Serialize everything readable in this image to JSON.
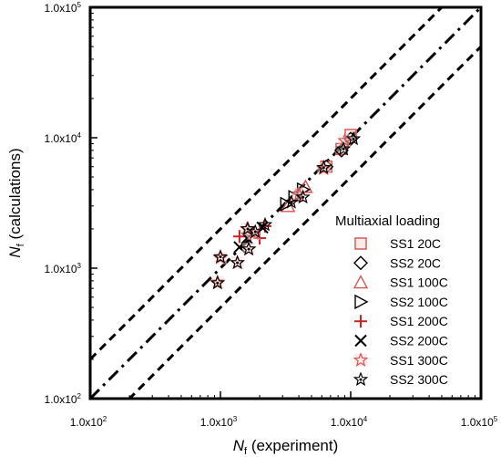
{
  "chart_data": {
    "type": "scatter",
    "x_scale": "log",
    "y_scale": "log",
    "xlim": [
      100,
      100000
    ],
    "ylim": [
      100,
      100000
    ],
    "x_ticks": [
      100,
      1000,
      10000,
      100000
    ],
    "y_ticks": [
      100,
      1000,
      10000,
      100000
    ],
    "x_tick_labels": [
      {
        "mantissa": "1.0x10",
        "exp": "2"
      },
      {
        "mantissa": "1.0x10",
        "exp": "3"
      },
      {
        "mantissa": "1.0x10",
        "exp": "4"
      },
      {
        "mantissa": "1.0x10",
        "exp": "5"
      }
    ],
    "y_tick_labels": [
      {
        "mantissa": "1.0x10",
        "exp": "2"
      },
      {
        "mantissa": "1.0x10",
        "exp": "3"
      },
      {
        "mantissa": "1.0x10",
        "exp": "4"
      },
      {
        "mantissa": "1.0x10",
        "exp": "5"
      }
    ],
    "xlabel": {
      "symbol": "N",
      "sub": "f",
      "text": " (experiment)"
    },
    "ylabel": {
      "symbol": "N",
      "sub": "f",
      "text": " (calculations)"
    },
    "legend_title": "Multiaxial loading",
    "legend_position": "bottom-right",
    "grid": false,
    "reference_lines": [
      {
        "style": "dashdot",
        "factor": 1
      },
      {
        "style": "dashed",
        "factor": 2
      },
      {
        "style": "dashed",
        "factor": 0.5
      }
    ],
    "series": [
      {
        "name": "SS1 20C",
        "marker": "square",
        "color": "#d9534f",
        "points": [
          [
            6500,
            6000
          ],
          [
            10000,
            10500
          ],
          [
            8500,
            8200
          ]
        ]
      },
      {
        "name": "SS2 20C",
        "marker": "diamond",
        "color": "#000000",
        "points": [
          [
            6500,
            6000
          ],
          [
            10000,
            9800
          ],
          [
            8500,
            8000
          ]
        ]
      },
      {
        "name": "SS1 100C",
        "marker": "triangle-up",
        "color": "#d9534f",
        "points": [
          [
            4500,
            4200
          ],
          [
            3800,
            3600
          ],
          [
            3300,
            3000
          ]
        ]
      },
      {
        "name": "SS2 100C",
        "marker": "triangle-right",
        "color": "#000000",
        "points": [
          [
            4300,
            4000
          ],
          [
            3700,
            3500
          ],
          [
            3200,
            3100
          ]
        ]
      },
      {
        "name": "SS1 200C",
        "marker": "plus",
        "color": "#cc2222",
        "points": [
          [
            1400,
            1750
          ],
          [
            2000,
            1700
          ],
          [
            2200,
            2100
          ],
          [
            1700,
            1800
          ]
        ]
      },
      {
        "name": "SS2 200C",
        "marker": "x",
        "color": "#000000",
        "points": [
          [
            1400,
            1450
          ],
          [
            2100,
            2050
          ],
          [
            1600,
            1700
          ]
        ]
      },
      {
        "name": "SS1 300C",
        "marker": "star",
        "color": "#d9534f",
        "points": [
          [
            950,
            780
          ],
          [
            1000,
            1200
          ],
          [
            1350,
            1100
          ],
          [
            1650,
            1400
          ],
          [
            1600,
            2000
          ],
          [
            1800,
            1850
          ],
          [
            4000,
            3700
          ],
          [
            6200,
            5800
          ],
          [
            9000,
            9500
          ]
        ]
      },
      {
        "name": "SS2 300C",
        "marker": "star-inner",
        "color": "#000000",
        "points": [
          [
            950,
            770
          ],
          [
            1000,
            1220
          ],
          [
            1350,
            1100
          ],
          [
            1650,
            1400
          ],
          [
            1620,
            2000
          ],
          [
            1850,
            1900
          ],
          [
            2200,
            2150
          ],
          [
            4300,
            3500
          ],
          [
            6200,
            5900
          ],
          [
            8800,
            8200
          ],
          [
            10500,
            9800
          ],
          [
            3500,
            3200
          ]
        ]
      }
    ]
  }
}
